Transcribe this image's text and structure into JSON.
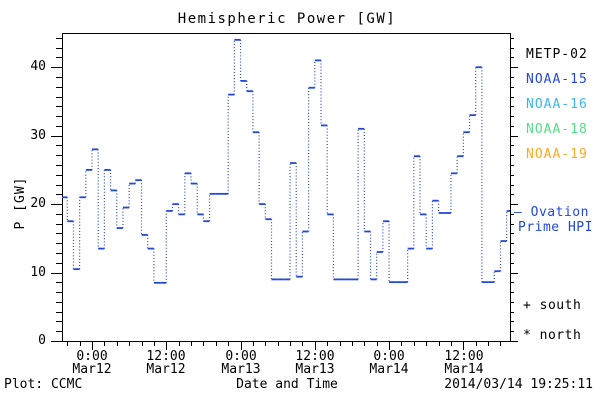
{
  "title": "Hemispheric Power [GW]",
  "legend": {
    "satellites": [
      {
        "label": "METP-02",
        "color": "#000000"
      },
      {
        "label": "NOAA-15",
        "color": "#2348d8"
      },
      {
        "label": "NOAA-16",
        "color": "#3cb8e8"
      },
      {
        "label": "NOAA-18",
        "color": "#55dd88"
      },
      {
        "label": "NOAA-19",
        "color": "#ffaa22"
      }
    ],
    "ovation_line1": "— Ovation",
    "ovation_line2": "Prime HPI",
    "south_marker": "+ south",
    "north_marker": "* north"
  },
  "footer": {
    "plot_credit": "Plot: CCMC",
    "timestamp": "2014/03/14 19:25:11"
  },
  "chart_data": {
    "type": "line",
    "subtype": "step-histogram-dotted",
    "title": "Hemispheric Power [GW]",
    "xlabel": "Date and Time",
    "ylabel": "P [GW]",
    "ylim": [
      0,
      45
    ],
    "yticks": [
      {
        "value": 0,
        "label": "0"
      },
      {
        "value": 10,
        "label": "10"
      },
      {
        "value": 20,
        "label": "20"
      },
      {
        "value": 30,
        "label": "30"
      },
      {
        "value": 40,
        "label": "40"
      }
    ],
    "y_minor_unit": 1.4286,
    "grid": false,
    "legend_position": "right-outside",
    "x_hours_visible": [
      -4.85,
      67.54
    ],
    "x_minor_step_hours": 2,
    "xticks": [
      {
        "hour": 0,
        "time": "0:00",
        "date": "Mar12"
      },
      {
        "hour": 12,
        "time": "12:00",
        "date": "Mar12"
      },
      {
        "hour": 24,
        "time": "0:00",
        "date": "Mar13"
      },
      {
        "hour": 36,
        "time": "12:00",
        "date": "Mar13"
      },
      {
        "hour": 48,
        "time": "0:00",
        "date": "Mar14"
      },
      {
        "hour": 60,
        "time": "12:00",
        "date": "Mar14"
      }
    ],
    "series": [
      {
        "name": "Ovation Prime HPI",
        "color": "#2348d8",
        "hour_zero_is": "Mar12 00:00",
        "start_hour": -6,
        "step_hours": 1,
        "values": [
          21,
          21,
          17.5,
          10.5,
          21,
          25,
          28,
          13.5,
          25,
          22,
          16.5,
          19.5,
          23,
          23.5,
          15.5,
          13.5,
          8.5,
          8.5,
          19,
          20,
          18.5,
          24.5,
          23,
          18.5,
          17.5,
          21.5,
          21.5,
          21.5,
          36,
          44,
          38,
          36.5,
          30.5,
          20,
          17.8,
          9,
          9,
          9,
          26,
          9.4,
          16,
          37,
          41,
          31.5,
          18.5,
          9,
          9,
          9,
          9,
          31,
          16,
          9,
          13,
          17.5,
          8.6,
          8.6,
          8.6,
          13.5,
          27,
          18.5,
          13.5,
          20.5,
          18.7,
          18.7,
          24.5,
          27,
          30.5,
          33,
          40,
          8.6,
          8.6,
          10.2,
          14.6,
          19
        ]
      }
    ]
  }
}
